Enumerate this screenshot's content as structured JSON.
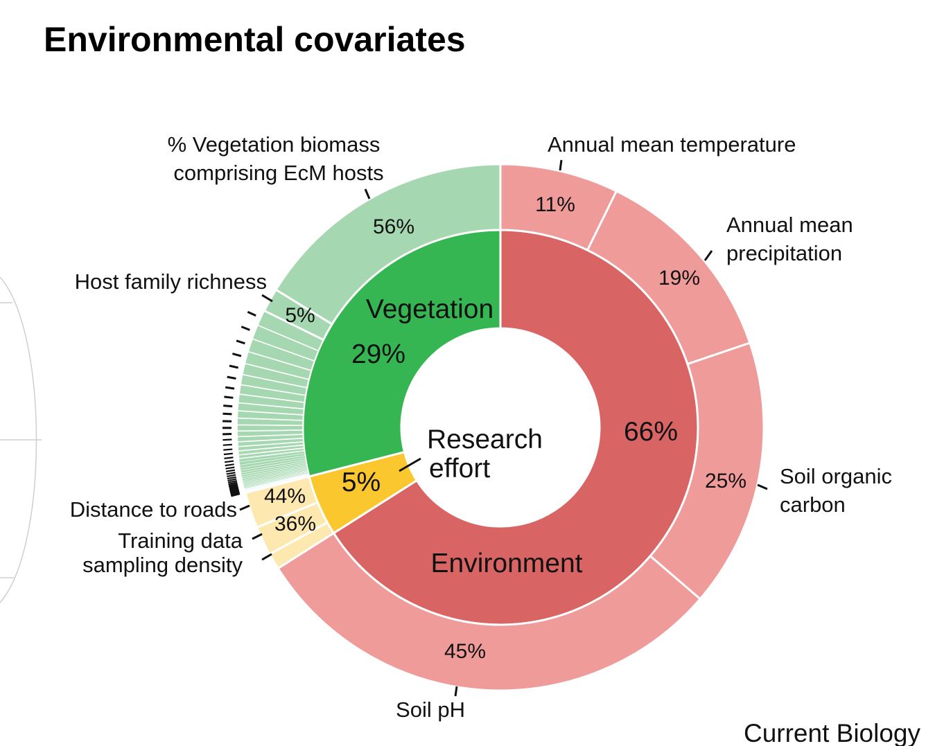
{
  "title": "Environmental covariates",
  "journal": "Current Biology",
  "colors": {
    "vegetation_inner": "#35b653",
    "vegetation_outer": "#a5d8b0",
    "research_inner": "#fac72e",
    "research_outer": "#fde9b0",
    "environment_inner": "#d86464",
    "environment_outer": "#ee9b9a"
  },
  "chart_data": {
    "type": "pie",
    "subtype": "sunburst",
    "title": "Environmental covariates",
    "inner": [
      {
        "name": "Vegetation",
        "label": "Vegetation",
        "value": 29,
        "value_label": "29%"
      },
      {
        "name": "Research effort",
        "label_lines": [
          "Research",
          "effort"
        ],
        "value": 5,
        "value_label": "5%"
      },
      {
        "name": "Environment",
        "label": "Environment",
        "value": 66,
        "value_label": "66%"
      }
    ],
    "outer": [
      {
        "group": "Vegetation",
        "name": "% Vegetation biomass comprising EcM hosts",
        "share_of_group": 56,
        "value_label": "56%"
      },
      {
        "group": "Vegetation",
        "name": "Host family richness",
        "share_of_group": 5,
        "value_label": "5%"
      },
      {
        "group": "Vegetation",
        "name": "other vegetation covariates (unlabeled)",
        "share_of_group": 39,
        "unlabeled_parts": 40
      },
      {
        "group": "Research effort",
        "name": "Distance to roads",
        "share_of_group": 44,
        "value_label": "44%"
      },
      {
        "group": "Research effort",
        "name": "Training data sampling density",
        "share_of_group": 36,
        "value_label": "36%"
      },
      {
        "group": "Research effort",
        "name": "other research covariate (unlabeled)",
        "share_of_group": 20
      },
      {
        "group": "Environment",
        "name": "Annual mean temperature",
        "share_of_group": 11,
        "value_label": "11%"
      },
      {
        "group": "Environment",
        "name": "Annual mean precipitation",
        "share_of_group": 19,
        "value_label": "19%"
      },
      {
        "group": "Environment",
        "name": "Soil organic carbon",
        "share_of_group": 25,
        "value_label": "25%"
      },
      {
        "group": "Environment",
        "name": "Soil pH",
        "share_of_group": 45,
        "value_label": "45%"
      }
    ],
    "labels": {
      "veg_biomass": [
        "% Vegetation biomass",
        "comprising EcM hosts"
      ],
      "host_richness": "Host family richness",
      "temperature": "Annual mean temperature",
      "precipitation": [
        "Annual mean",
        "precipitation"
      ],
      "soil_carbon": [
        "Soil organic",
        "carbon"
      ],
      "soil_ph": "Soil pH",
      "roads": "Distance to roads",
      "sampling": [
        "Training data",
        "sampling density"
      ]
    }
  }
}
